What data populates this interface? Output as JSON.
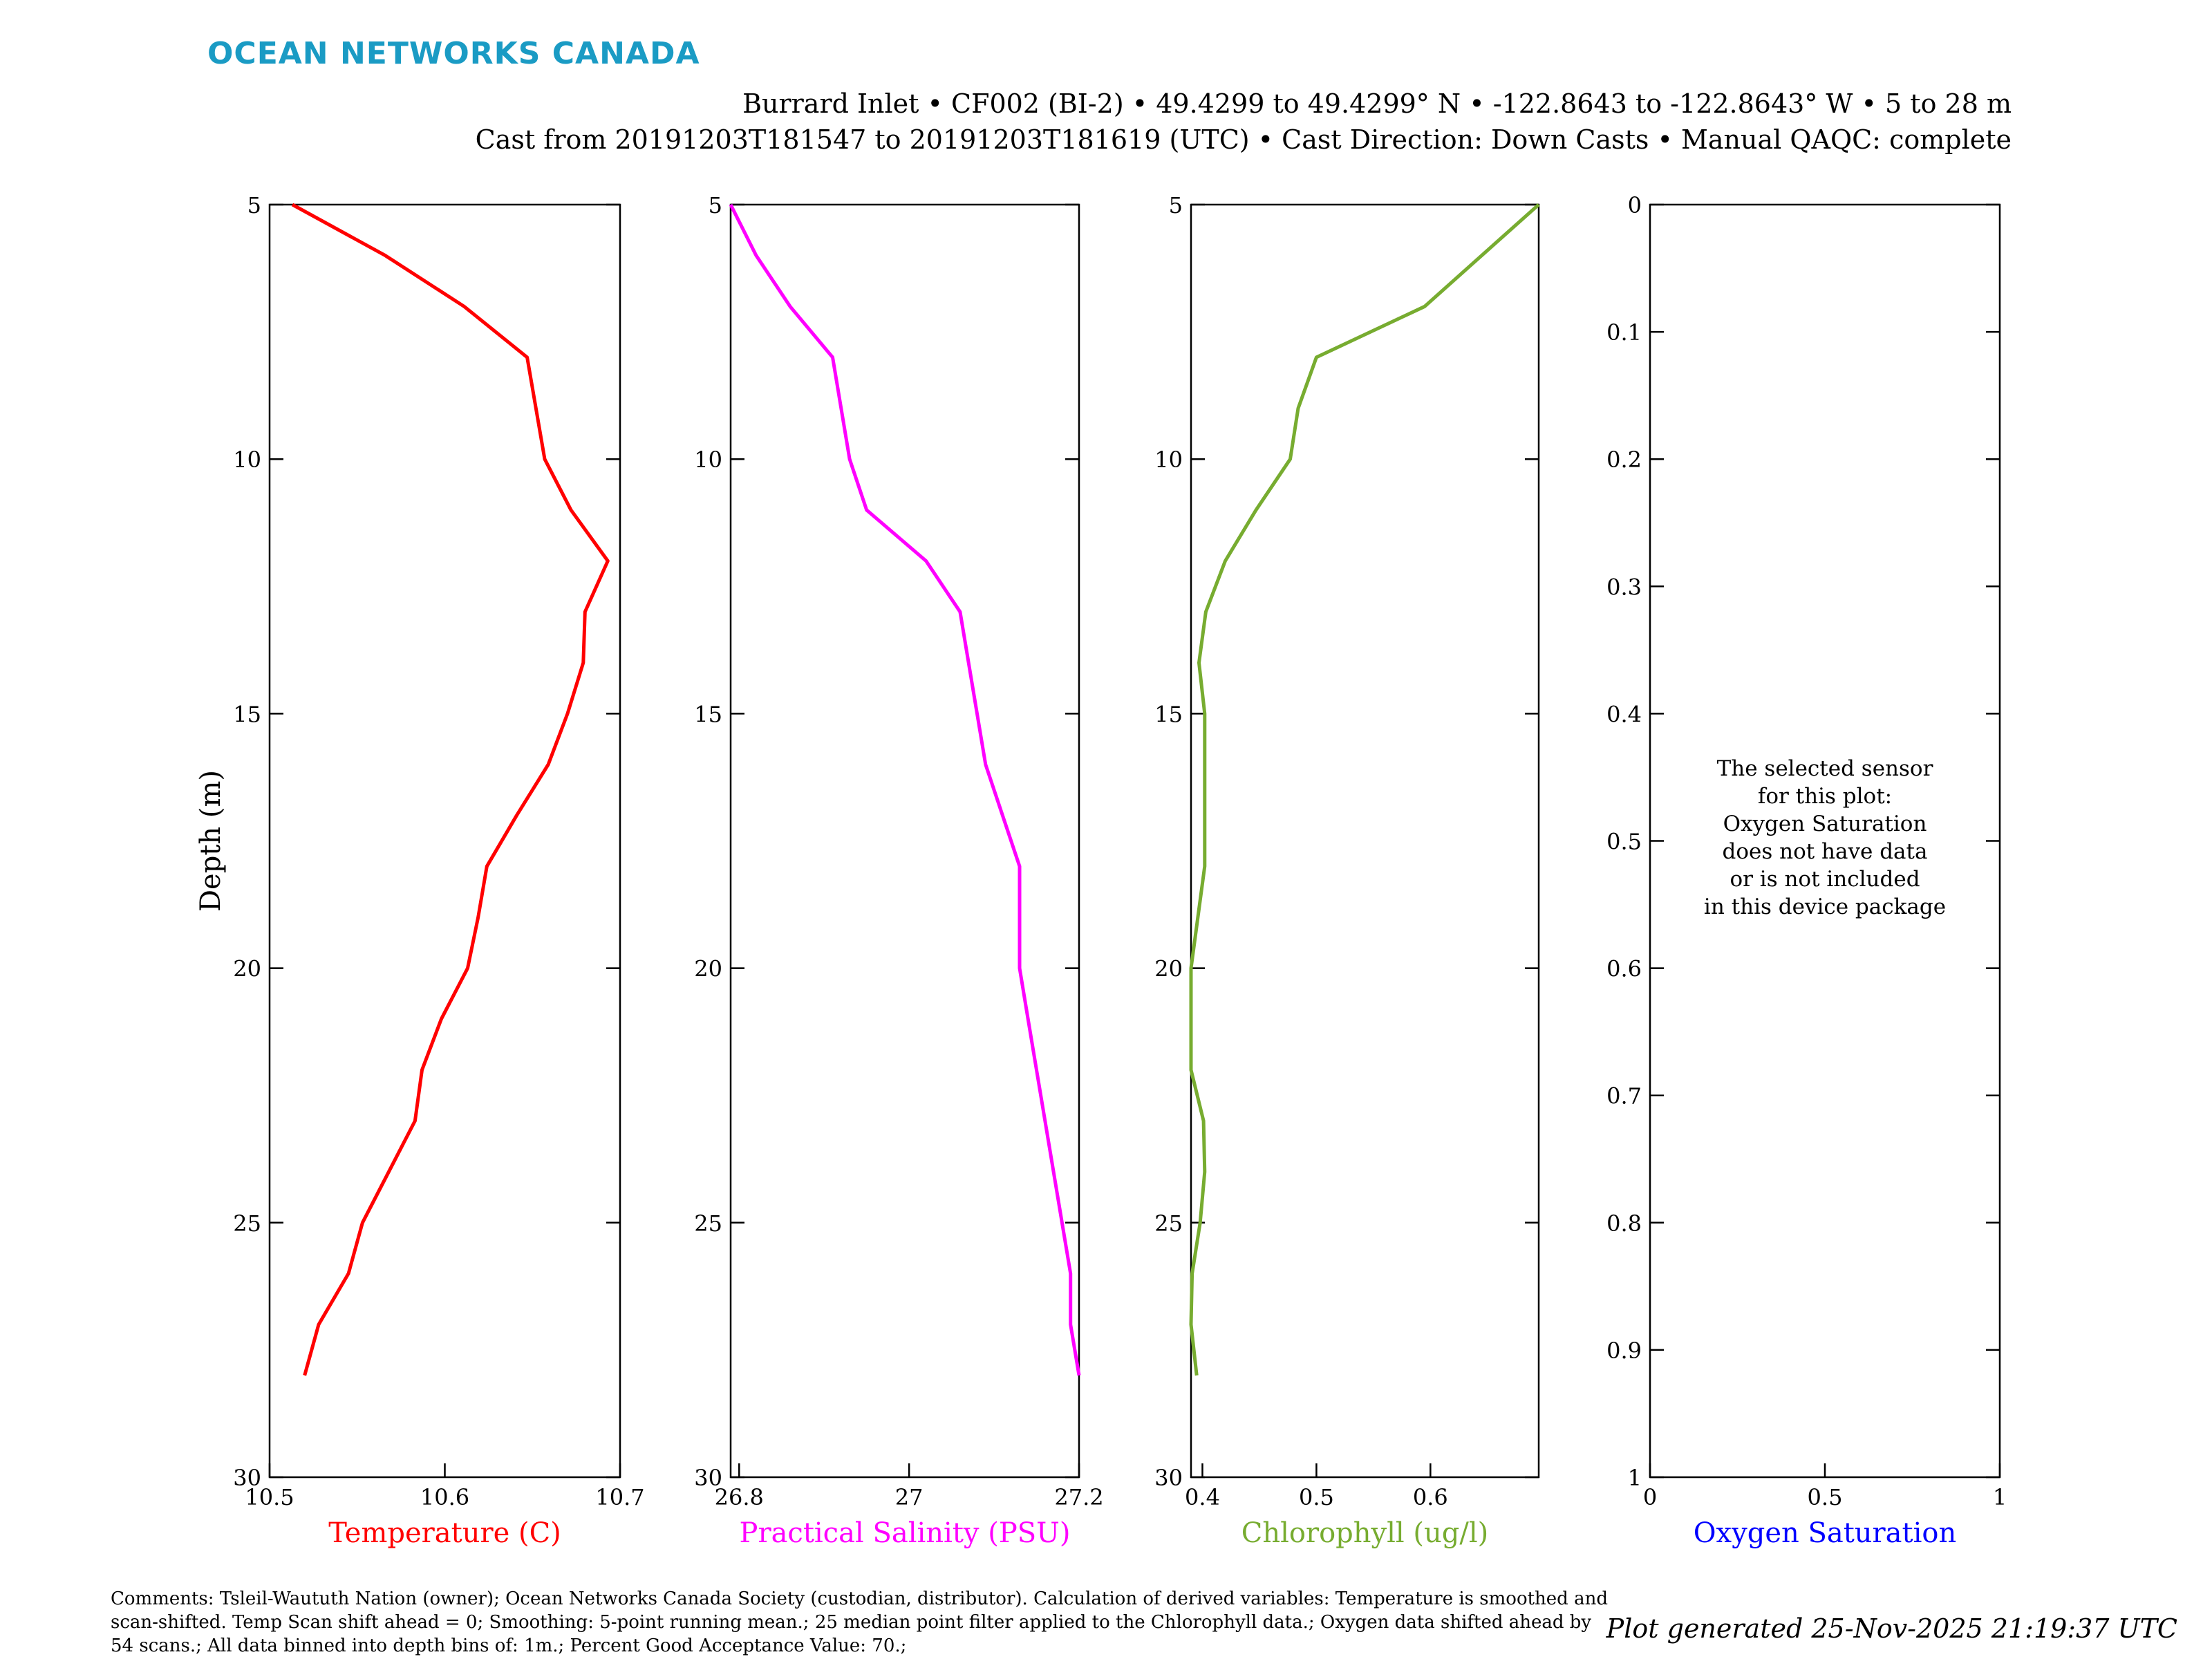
{
  "brand": "OCEAN NETWORKS CANADA",
  "title_line1": "Burrard Inlet • CF002 (BI-2) • 49.4299 to 49.4299° N • -122.8643 to -122.8643° W • 5 to 28 m",
  "title_line2": "Cast from 20191203T181547 to 20191203T181619 (UTC) • Cast Direction: Down Casts • Manual QAQC: complete",
  "comments": "Comments: Tsleil-Waututh Nation (owner); Ocean Networks Canada Society (custodian, distributor). Calculation of derived variables: Temperature is smoothed and scan-shifted. Temp Scan shift ahead = 0; Smoothing: 5-point running mean.; 25 median point filter applied to the Chlorophyll data.; Oxygen data shifted ahead by 54 scans.; All data binned into depth bins of: 1m.; Percent Good Acceptance Value: 70.;",
  "generated": "Plot generated 25-Nov-2025 21:19:37 UTC",
  "chart_data": [
    {
      "type": "line",
      "xlabel": "Temperature (C)",
      "ylabel": "Depth (m)",
      "color": "#ff0000",
      "xlim": [
        10.5,
        10.7
      ],
      "ylim": [
        5,
        30
      ],
      "y_reversed": true,
      "xticks": [
        "10.5",
        "10.6",
        "10.7"
      ],
      "yticks": [
        "5",
        "10",
        "15",
        "20",
        "25",
        "30"
      ],
      "series": [
        {
          "depth": [
            5,
            6,
            7,
            8,
            9,
            10,
            11,
            12,
            13,
            14,
            15,
            16,
            17,
            18,
            19,
            20,
            21,
            22,
            23,
            24,
            25,
            26,
            27,
            28
          ],
          "values": [
            10.513,
            10.566,
            10.611,
            10.647,
            10.652,
            10.657,
            10.672,
            10.693,
            10.68,
            10.679,
            10.67,
            10.659,
            10.641,
            10.624,
            10.619,
            10.613,
            10.598,
            10.587,
            10.583,
            10.568,
            10.553,
            10.545,
            10.528,
            10.52
          ]
        }
      ]
    },
    {
      "type": "line",
      "xlabel": "Practical Salinity (PSU)",
      "color": "#ff00ff",
      "xlim": [
        26.79,
        27.2
      ],
      "ylim": [
        5,
        30
      ],
      "y_reversed": true,
      "xticks": [
        "26.8",
        "27",
        "27.2"
      ],
      "yticks": [
        "5",
        "10",
        "15",
        "20",
        "25",
        "30"
      ],
      "series": [
        {
          "depth": [
            5,
            6,
            7,
            8,
            9,
            10,
            11,
            12,
            13,
            14,
            15,
            16,
            17,
            18,
            19,
            20,
            21,
            22,
            23,
            24,
            25,
            26,
            27,
            28
          ],
          "values": [
            26.79,
            26.82,
            26.86,
            26.91,
            26.92,
            26.93,
            26.95,
            27.02,
            27.06,
            27.07,
            27.08,
            27.09,
            27.11,
            27.13,
            27.13,
            27.13,
            27.14,
            27.15,
            27.16,
            27.17,
            27.18,
            27.19,
            27.19,
            27.2
          ]
        }
      ]
    },
    {
      "type": "line",
      "xlabel": "Chlorophyll (ug/l)",
      "color": "#77ac30",
      "xlim": [
        0.39,
        0.695
      ],
      "ylim": [
        5,
        30
      ],
      "y_reversed": true,
      "xticks": [
        "0.4",
        "0.5",
        "0.6"
      ],
      "yticks": [
        "5",
        "10",
        "15",
        "20",
        "25",
        "30"
      ],
      "series": [
        {
          "depth": [
            5,
            6,
            7,
            8,
            9,
            10,
            11,
            12,
            13,
            14,
            15,
            16,
            17,
            18,
            19,
            20,
            21,
            22,
            23,
            24,
            25,
            26,
            27,
            28
          ],
          "values": [
            0.695,
            0.645,
            0.595,
            0.5,
            0.484,
            0.477,
            0.447,
            0.42,
            0.403,
            0.397,
            0.402,
            0.402,
            0.402,
            0.402,
            0.396,
            0.39,
            0.39,
            0.39,
            0.401,
            0.402,
            0.398,
            0.391,
            0.39,
            0.395
          ]
        }
      ]
    },
    {
      "type": "line",
      "xlabel": "Oxygen Saturation",
      "color": "#0000ff",
      "xlim": [
        0,
        1
      ],
      "ylim": [
        0,
        1
      ],
      "y_reversed": true,
      "xticks": [
        "0",
        "0.5",
        "1"
      ],
      "yticks": [
        "0",
        "0.1",
        "0.2",
        "0.3",
        "0.4",
        "0.5",
        "0.6",
        "0.7",
        "0.8",
        "0.9",
        "1"
      ],
      "no_data_message": [
        "The selected sensor",
        "for this plot:",
        "Oxygen Saturation",
        "does not have data",
        "or is not included",
        "in this device package"
      ],
      "series": []
    }
  ]
}
